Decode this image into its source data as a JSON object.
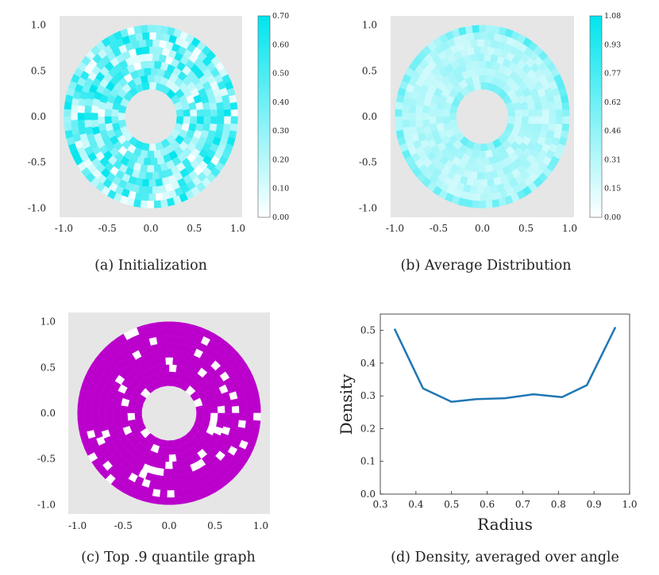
{
  "panels": {
    "a": {
      "caption": "(a) Initialization",
      "x_ticks": [
        "-1.0",
        "-0.5",
        "0.0",
        "0.5",
        "1.0"
      ],
      "y_ticks": [
        "1.0",
        "0.5",
        "0.0",
        "-0.5",
        "-1.0"
      ],
      "colorbar_ticks": [
        "0.70",
        "0.60",
        "0.50",
        "0.40",
        "0.30",
        "0.20",
        "0.10",
        "0.00"
      ],
      "colorbar_range": [
        0,
        0.7
      ],
      "color": "#00e5ee"
    },
    "b": {
      "caption": "(b) Average Distribution",
      "x_ticks": [
        "-1.0",
        "-0.5",
        "0.0",
        "0.5",
        "1.0"
      ],
      "y_ticks": [
        "1.0",
        "0.5",
        "0.0",
        "-0.5",
        "-1.0"
      ],
      "colorbar_ticks": [
        "1.08",
        "0.93",
        "0.77",
        "0.62",
        "0.46",
        "0.31",
        "0.15",
        "0.00"
      ],
      "colorbar_range": [
        0,
        1.08
      ],
      "color": "#00e5ee"
    },
    "c": {
      "caption": "(c) Top .9 quantile graph",
      "x_ticks": [
        "-1.0",
        "-0.5",
        "0.0",
        "0.5",
        "1.0"
      ],
      "y_ticks": [
        "1.0",
        "0.5",
        "0.0",
        "-0.5",
        "-1.0"
      ],
      "color": "#bb00cc"
    },
    "d": {
      "caption": "(d) Density, averaged over angle"
    }
  },
  "chart_data": [
    {
      "type": "heatmap",
      "panel": "a",
      "description_note": "annular polar grid heatmap, random initial values",
      "xlim": [
        -1.0,
        1.0
      ],
      "ylim": [
        -1.0,
        1.0
      ],
      "inner_radius": 0.3,
      "outer_radius": 1.0,
      "colorbar_range": [
        0,
        0.7
      ],
      "background": "#e6e6e6"
    },
    {
      "type": "heatmap",
      "panel": "b",
      "xlim": [
        -1.0,
        1.0
      ],
      "ylim": [
        -1.0,
        1.0
      ],
      "inner_radius": 0.3,
      "outer_radius": 1.0,
      "colorbar_range": [
        0,
        1.08
      ],
      "background": "#e6e6e6"
    },
    {
      "type": "heatmap",
      "panel": "c",
      "xlim": [
        -1.0,
        1.0
      ],
      "ylim": [
        -1.0,
        1.0
      ],
      "inner_radius": 0.3,
      "outer_radius": 1.0,
      "background": "#e6e6e6"
    },
    {
      "type": "line",
      "panel": "d",
      "xlabel": "Radius",
      "ylabel": "Density",
      "xlim": [
        0.3,
        1.0
      ],
      "ylim": [
        0.0,
        0.55
      ],
      "x_ticks": [
        "0.3",
        "0.4",
        "0.5",
        "0.6",
        "0.7",
        "0.8",
        "0.9",
        "1.0"
      ],
      "y_ticks": [
        "0.0",
        "0.1",
        "0.2",
        "0.3",
        "0.4",
        "0.5"
      ],
      "x": [
        0.34,
        0.42,
        0.5,
        0.57,
        0.65,
        0.73,
        0.81,
        0.88,
        0.96
      ],
      "y": [
        0.505,
        0.323,
        0.282,
        0.29,
        0.293,
        0.305,
        0.296,
        0.333,
        0.51
      ],
      "color": "#1f77b4"
    }
  ]
}
